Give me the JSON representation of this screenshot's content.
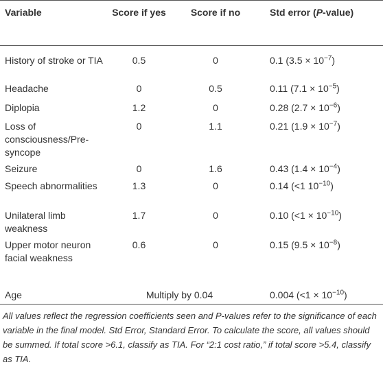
{
  "table": {
    "header": {
      "variable": "Variable",
      "score_yes": "Score if yes",
      "score_no": "Score if no",
      "std_error": {
        "before": "Std error (",
        "italic": "P",
        "after": "-value)"
      }
    },
    "rows": [
      {
        "variable": "History of stroke or TIA",
        "score_yes": "0.5",
        "score_no": "0",
        "std_error": {
          "base": "0.1 (3.5 × 10",
          "exponent": "−7",
          "close": ")"
        }
      },
      {
        "variable": "Headache",
        "score_yes": "0",
        "score_no": "0.5",
        "std_error": {
          "base": "0.11 (7.1 × 10",
          "exponent": "−5",
          "close": ")"
        }
      },
      {
        "variable": "Diplopia",
        "score_yes": "1.2",
        "score_no": "0",
        "std_error": {
          "base": "0.28 (2.7 × 10",
          "exponent": "−6",
          "close": ")"
        }
      },
      {
        "variable": "Loss of consciousness/Pre-syncope",
        "score_yes": "0",
        "score_no": "1.1",
        "std_error": {
          "base": "0.21 (1.9 × 10",
          "exponent": "−7",
          "close": ")"
        }
      },
      {
        "variable": "Seizure",
        "score_yes": "0",
        "score_no": "1.6",
        "std_error": {
          "base": "0.43 (1.4 × 10",
          "exponent": "−4",
          "close": ")"
        }
      },
      {
        "variable": "Speech abnormalities",
        "score_yes": "1.3",
        "score_no": "0",
        "std_error": {
          "base": "0.14 (<1 10",
          "exponent": "−10",
          "close": ")"
        }
      },
      {
        "variable": "Unilateral limb weakness",
        "score_yes": "1.7",
        "score_no": "0",
        "std_error": {
          "base": "0.10 (<1 × 10",
          "exponent": "−10",
          "close": ")"
        }
      },
      {
        "variable": "Upper motor neuron facial weakness",
        "score_yes": "0.6",
        "score_no": "0",
        "std_error": {
          "base": "0.15 (9.5 × 10",
          "exponent": "−8",
          "close": ")"
        }
      }
    ],
    "age_row": {
      "variable": "Age",
      "score": "Multiply by 0.04",
      "std_error": {
        "base": "0.004 (<1 × 10",
        "exponent": "−10",
        "close": ")"
      }
    },
    "footnote": "All values reflect the regression coefficients seen and P-values refer to the significance of each variable in the final model. Std Error, Standard Error. To calculate the score, all values should be summed. If total score >6.1, classify as TIA. For “2:1 cost ratio,” if total score >5.4, classify as TIA."
  }
}
